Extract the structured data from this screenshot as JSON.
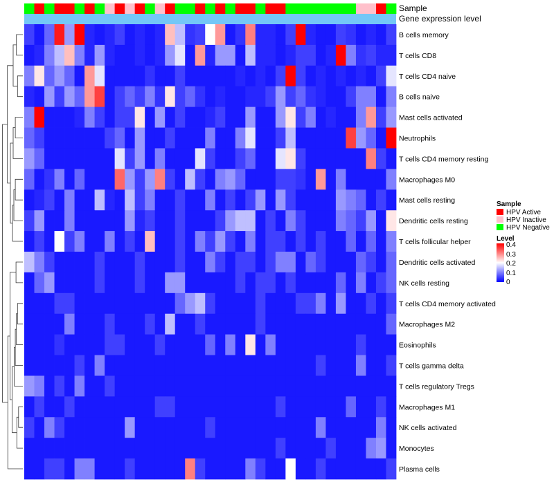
{
  "chart_data": {
    "type": "heatmap",
    "title": "",
    "annotation_labels": [
      "Sample",
      "Gene expression level"
    ],
    "rows": [
      "B cells memory",
      "T cells CD8",
      "T cells CD4 naive",
      "B cells naive",
      "Mast cells activated",
      "Neutrophils",
      "T cells CD4 memory resting",
      "Macrophages M0",
      "Mast cells resting",
      "Dendritic cells resting",
      "T cells follicular helper",
      "Dendritic cells activated",
      "NK cells resting",
      "T cells CD4 memory activated",
      "Macrophages M2",
      "Eosinophils",
      "T cells gamma delta",
      "T cells regulatory  Tregs",
      "Macrophages M1",
      "NK cells activated",
      "Monocytes",
      "Plasma cells"
    ],
    "sample_groups": [
      "Negative",
      "Active",
      "Negative",
      "Active",
      "Active",
      "Negative",
      "Active",
      "Negative",
      "Inactive",
      "Active",
      "Inactive",
      "Active",
      "Negative",
      "Inactive",
      "Active",
      "Negative",
      "Negative",
      "Active",
      "Negative",
      "Active",
      "Negative",
      "Active",
      "Active",
      "Negative",
      "Active",
      "Active",
      "Negative",
      "Negative",
      "Negative",
      "Negative",
      "Negative",
      "Negative",
      "Negative",
      "Inactive",
      "Inactive",
      "Active",
      "Negative"
    ],
    "values": [
      [
        0.05,
        0.02,
        0.08,
        0.38,
        0.12,
        0.4,
        0.03,
        0.02,
        0.03,
        0.05,
        0.02,
        0.03,
        0.02,
        0.03,
        0.25,
        0.15,
        0.04,
        0.05,
        0.2,
        0.28,
        0.02,
        0.04,
        0.3,
        0.03,
        0.03,
        0.02,
        0.05,
        0.4,
        0.03,
        0.02,
        0.02,
        0.05,
        0.04,
        0.02,
        0.03,
        0.02,
        0.05
      ],
      [
        0.02,
        0.03,
        0.1,
        0.15,
        0.25,
        0.1,
        0.03,
        0.12,
        0.03,
        0.02,
        0.02,
        0.03,
        0.02,
        0.03,
        0.12,
        0.18,
        0.02,
        0.28,
        0.03,
        0.12,
        0.12,
        0.02,
        0.15,
        0.03,
        0.03,
        0.02,
        0.03,
        0.05,
        0.05,
        0.02,
        0.03,
        0.4,
        0.1,
        0.04,
        0.05,
        0.03,
        0.03
      ],
      [
        0.1,
        0.22,
        0.08,
        0.12,
        0.08,
        0.02,
        0.28,
        0.18,
        0.02,
        0.02,
        0.02,
        0.02,
        0.04,
        0.02,
        0.02,
        0.05,
        0.02,
        0.02,
        0.02,
        0.02,
        0.02,
        0.03,
        0.02,
        0.03,
        0.02,
        0.05,
        0.4,
        0.05,
        0.02,
        0.03,
        0.02,
        0.03,
        0.02,
        0.03,
        0.02,
        0.05,
        0.18
      ],
      [
        0.03,
        0.02,
        0.12,
        0.05,
        0.12,
        0.08,
        0.28,
        0.35,
        0.02,
        0.05,
        0.08,
        0.05,
        0.1,
        0.04,
        0.22,
        0.05,
        0.08,
        0.04,
        0.02,
        0.03,
        0.02,
        0.02,
        0.03,
        0.03,
        0.05,
        0.12,
        0.05,
        0.08,
        0.04,
        0.03,
        0.02,
        0.02,
        0.05,
        0.1,
        0.1,
        0.02,
        0.1
      ],
      [
        0.1,
        0.4,
        0.02,
        0.02,
        0.02,
        0.03,
        0.1,
        0.05,
        0.02,
        0.05,
        0.05,
        0.22,
        0.02,
        0.12,
        0.02,
        0.05,
        0.02,
        0.02,
        0.03,
        0.05,
        0.02,
        0.02,
        0.12,
        0.02,
        0.02,
        0.12,
        0.22,
        0.05,
        0.1,
        0.02,
        0.03,
        0.02,
        0.02,
        0.1,
        0.28,
        0.05,
        0.12
      ],
      [
        0.08,
        0.05,
        0.02,
        0.02,
        0.02,
        0.02,
        0.02,
        0.02,
        0.05,
        0.08,
        0.02,
        0.12,
        0.02,
        0.02,
        0.05,
        0.02,
        0.02,
        0.02,
        0.1,
        0.02,
        0.02,
        0.1,
        0.18,
        0.02,
        0.02,
        0.05,
        0.15,
        0.02,
        0.02,
        0.02,
        0.02,
        0.02,
        0.35,
        0.12,
        0.08,
        0.02,
        0.4
      ],
      [
        0.12,
        0.08,
        0.02,
        0.02,
        0.02,
        0.02,
        0.02,
        0.02,
        0.02,
        0.18,
        0.05,
        0.12,
        0.02,
        0.1,
        0.02,
        0.02,
        0.02,
        0.18,
        0.05,
        0.02,
        0.02,
        0.05,
        0.08,
        0.02,
        0.02,
        0.18,
        0.22,
        0.05,
        0.02,
        0.02,
        0.02,
        0.02,
        0.02,
        0.02,
        0.3,
        0.05,
        0.02
      ],
      [
        0.08,
        0.02,
        0.04,
        0.1,
        0.02,
        0.08,
        0.02,
        0.02,
        0.02,
        0.32,
        0.12,
        0.05,
        0.12,
        0.3,
        0.05,
        0.02,
        0.15,
        0.05,
        0.02,
        0.1,
        0.12,
        0.08,
        0.02,
        0.02,
        0.02,
        0.05,
        0.05,
        0.04,
        0.02,
        0.28,
        0.02,
        0.1,
        0.02,
        0.02,
        0.02,
        0.02,
        0.1
      ],
      [
        0.02,
        0.03,
        0.05,
        0.02,
        0.1,
        0.02,
        0.02,
        0.15,
        0.03,
        0.02,
        0.15,
        0.05,
        0.1,
        0.02,
        0.02,
        0.05,
        0.02,
        0.02,
        0.1,
        0.02,
        0.05,
        0.02,
        0.05,
        0.12,
        0.02,
        0.12,
        0.05,
        0.02,
        0.02,
        0.02,
        0.02,
        0.12,
        0.1,
        0.08,
        0.02,
        0.05,
        0.02
      ],
      [
        0.05,
        0.12,
        0.02,
        0.02,
        0.1,
        0.02,
        0.02,
        0.02,
        0.02,
        0.02,
        0.12,
        0.03,
        0.05,
        0.02,
        0.02,
        0.05,
        0.02,
        0.02,
        0.02,
        0.05,
        0.12,
        0.15,
        0.15,
        0.02,
        0.05,
        0.02,
        0.1,
        0.05,
        0.02,
        0.02,
        0.02,
        0.1,
        0.08,
        0.05,
        0.12,
        0.02,
        0.22
      ],
      [
        0.02,
        0.05,
        0.02,
        0.2,
        0.05,
        0.1,
        0.02,
        0.02,
        0.1,
        0.02,
        0.05,
        0.02,
        0.25,
        0.02,
        0.02,
        0.05,
        0.02,
        0.1,
        0.05,
        0.12,
        0.05,
        0.02,
        0.1,
        0.02,
        0.05,
        0.05,
        0.02,
        0.05,
        0.02,
        0.05,
        0.02,
        0.02,
        0.08,
        0.02,
        0.08,
        0.02,
        0.1
      ],
      [
        0.15,
        0.1,
        0.05,
        0.02,
        0.02,
        0.02,
        0.02,
        0.05,
        0.02,
        0.02,
        0.02,
        0.05,
        0.02,
        0.02,
        0.02,
        0.05,
        0.02,
        0.02,
        0.1,
        0.05,
        0.02,
        0.05,
        0.05,
        0.02,
        0.05,
        0.1,
        0.1,
        0.02,
        0.08,
        0.05,
        0.02,
        0.02,
        0.02,
        0.08,
        0.05,
        0.02,
        0.08
      ],
      [
        0.02,
        0.08,
        0.12,
        0.02,
        0.02,
        0.02,
        0.02,
        0.05,
        0.02,
        0.02,
        0.02,
        0.05,
        0.02,
        0.02,
        0.12,
        0.12,
        0.02,
        0.02,
        0.02,
        0.02,
        0.02,
        0.05,
        0.02,
        0.05,
        0.05,
        0.02,
        0.05,
        0.02,
        0.02,
        0.02,
        0.02,
        0.08,
        0.02,
        0.1,
        0.02,
        0.05,
        0.08
      ],
      [
        0.02,
        0.02,
        0.02,
        0.05,
        0.05,
        0.02,
        0.02,
        0.02,
        0.02,
        0.02,
        0.02,
        0.02,
        0.02,
        0.02,
        0.02,
        0.08,
        0.12,
        0.15,
        0.05,
        0.02,
        0.02,
        0.02,
        0.02,
        0.05,
        0.02,
        0.02,
        0.02,
        0.05,
        0.05,
        0.1,
        0.02,
        0.12,
        0.02,
        0.02,
        0.05,
        0.02,
        0.05
      ],
      [
        0.02,
        0.02,
        0.02,
        0.02,
        0.1,
        0.02,
        0.02,
        0.02,
        0.05,
        0.02,
        0.02,
        0.02,
        0.05,
        0.02,
        0.15,
        0.02,
        0.02,
        0.05,
        0.02,
        0.02,
        0.02,
        0.02,
        0.02,
        0.05,
        0.02,
        0.02,
        0.02,
        0.02,
        0.02,
        0.02,
        0.02,
        0.02,
        0.02,
        0.02,
        0.02,
        0.02,
        0.08
      ],
      [
        0.02,
        0.02,
        0.02,
        0.04,
        0.02,
        0.02,
        0.02,
        0.02,
        0.05,
        0.05,
        0.02,
        0.02,
        0.02,
        0.05,
        0.02,
        0.02,
        0.02,
        0.02,
        0.08,
        0.02,
        0.1,
        0.02,
        0.22,
        0.02,
        0.1,
        0.02,
        0.02,
        0.02,
        0.02,
        0.02,
        0.02,
        0.02,
        0.02,
        0.05,
        0.02,
        0.02,
        0.02
      ],
      [
        0.02,
        0.02,
        0.02,
        0.02,
        0.02,
        0.05,
        0.02,
        0.1,
        0.02,
        0.02,
        0.02,
        0.02,
        0.02,
        0.02,
        0.02,
        0.02,
        0.02,
        0.02,
        0.02,
        0.02,
        0.02,
        0.02,
        0.02,
        0.02,
        0.02,
        0.02,
        0.02,
        0.02,
        0.02,
        0.05,
        0.02,
        0.02,
        0.02,
        0.1,
        0.02,
        0.02,
        0.05
      ],
      [
        0.12,
        0.1,
        0.02,
        0.05,
        0.02,
        0.1,
        0.02,
        0.02,
        0.05,
        0.02,
        0.02,
        0.02,
        0.02,
        0.02,
        0.02,
        0.02,
        0.02,
        0.02,
        0.02,
        0.02,
        0.02,
        0.02,
        0.02,
        0.02,
        0.02,
        0.02,
        0.02,
        0.02,
        0.02,
        0.02,
        0.02,
        0.02,
        0.02,
        0.02,
        0.02,
        0.02,
        0.02
      ],
      [
        0.02,
        0.05,
        0.02,
        0.02,
        0.05,
        0.02,
        0.02,
        0.02,
        0.02,
        0.02,
        0.02,
        0.02,
        0.02,
        0.05,
        0.05,
        0.02,
        0.02,
        0.02,
        0.02,
        0.02,
        0.02,
        0.02,
        0.02,
        0.02,
        0.02,
        0.05,
        0.02,
        0.02,
        0.02,
        0.02,
        0.02,
        0.02,
        0.08,
        0.02,
        0.02,
        0.05,
        0.02
      ],
      [
        0.05,
        0.02,
        0.1,
        0.05,
        0.02,
        0.02,
        0.02,
        0.02,
        0.02,
        0.02,
        0.12,
        0.02,
        0.02,
        0.02,
        0.02,
        0.02,
        0.02,
        0.02,
        0.05,
        0.02,
        0.02,
        0.02,
        0.02,
        0.02,
        0.02,
        0.02,
        0.02,
        0.02,
        0.02,
        0.1,
        0.02,
        0.02,
        0.02,
        0.02,
        0.02,
        0.1,
        0.02
      ],
      [
        0.02,
        0.02,
        0.02,
        0.02,
        0.02,
        0.02,
        0.02,
        0.02,
        0.02,
        0.02,
        0.02,
        0.02,
        0.02,
        0.02,
        0.02,
        0.02,
        0.02,
        0.02,
        0.02,
        0.02,
        0.02,
        0.02,
        0.02,
        0.02,
        0.02,
        0.05,
        0.02,
        0.02,
        0.02,
        0.02,
        0.05,
        0.02,
        0.02,
        0.02,
        0.1,
        0.12,
        0.02
      ],
      [
        0.02,
        0.02,
        0.05,
        0.05,
        0.02,
        0.1,
        0.1,
        0.02,
        0.02,
        0.02,
        0.05,
        0.02,
        0.02,
        0.02,
        0.02,
        0.02,
        0.3,
        0.05,
        0.02,
        0.02,
        0.02,
        0.02,
        0.1,
        0.05,
        0.02,
        0.02,
        0.2,
        0.02,
        0.02,
        0.05,
        0.02,
        0.02,
        0.02,
        0.02,
        0.02,
        0.02,
        0.05
      ]
    ],
    "color_scale": {
      "min": 0,
      "max": 0.4,
      "low": "#0000ff",
      "mid": "#ffffff",
      "high": "#ff0000"
    },
    "legend": {
      "sample_title": "Sample",
      "sample_entries": [
        {
          "name": "HPV Active",
          "color": "#ff0000"
        },
        {
          "name": "HPV Inactive",
          "color": "#ffc0cb"
        },
        {
          "name": "HPV Negative",
          "color": "#00ff00"
        }
      ],
      "level_title": "Level",
      "level_ticks": [
        "0.4",
        "0.3",
        "0.2",
        "0.1",
        "0"
      ],
      "placement": "right"
    },
    "group_colors": {
      "Active": "#ff0000",
      "Inactive": "#ffc0cb",
      "Negative": "#00ff00"
    },
    "expression_bar_color": "#74c7f7",
    "dendrogram": "left"
  }
}
